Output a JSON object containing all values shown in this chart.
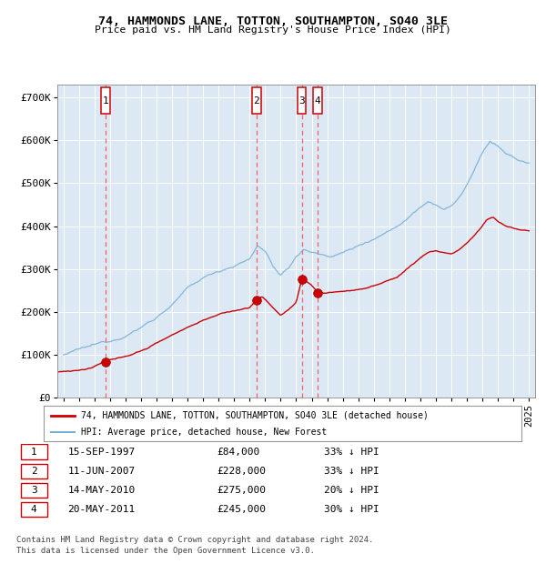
{
  "title": "74, HAMMONDS LANE, TOTTON, SOUTHAMPTON, SO40 3LE",
  "subtitle": "Price paid vs. HM Land Registry's House Price Index (HPI)",
  "legend_label_red": "74, HAMMONDS LANE, TOTTON, SOUTHAMPTON, SO40 3LE (detached house)",
  "legend_label_blue": "HPI: Average price, detached house, New Forest",
  "footer_line1": "Contains HM Land Registry data © Crown copyright and database right 2024.",
  "footer_line2": "This data is licensed under the Open Government Licence v3.0.",
  "transactions": [
    {
      "num": 1,
      "date": "15-SEP-1997",
      "price": 84000,
      "pct": "33%",
      "dir": "↓",
      "year": 1997.71
    },
    {
      "num": 2,
      "date": "11-JUN-2007",
      "price": 228000,
      "pct": "33%",
      "dir": "↓",
      "year": 2007.44
    },
    {
      "num": 3,
      "date": "14-MAY-2010",
      "price": 275000,
      "pct": "20%",
      "dir": "↓",
      "year": 2010.37
    },
    {
      "num": 4,
      "date": "20-MAY-2011",
      "price": 245000,
      "pct": "30%",
      "dir": "↓",
      "year": 2011.38
    }
  ],
  "plot_bg": "#dce9f5",
  "grid_color": "#ffffff",
  "red_line_color": "#cc0000",
  "blue_line_color": "#7ab0d4",
  "dashed_color": "#ff4444",
  "ylim": [
    0,
    730000
  ],
  "xlim_start": 1994.6,
  "xlim_end": 2025.4,
  "yticks": [
    0,
    100000,
    200000,
    300000,
    400000,
    500000,
    600000,
    700000
  ],
  "ytick_labels": [
    "£0",
    "£100K",
    "£200K",
    "£300K",
    "£400K",
    "£500K",
    "£600K",
    "£700K"
  ],
  "xticks": [
    1995,
    1996,
    1997,
    1998,
    1999,
    2000,
    2001,
    2002,
    2003,
    2004,
    2005,
    2006,
    2007,
    2008,
    2009,
    2010,
    2011,
    2012,
    2013,
    2014,
    2015,
    2016,
    2017,
    2018,
    2019,
    2020,
    2021,
    2022,
    2023,
    2024,
    2025
  ]
}
